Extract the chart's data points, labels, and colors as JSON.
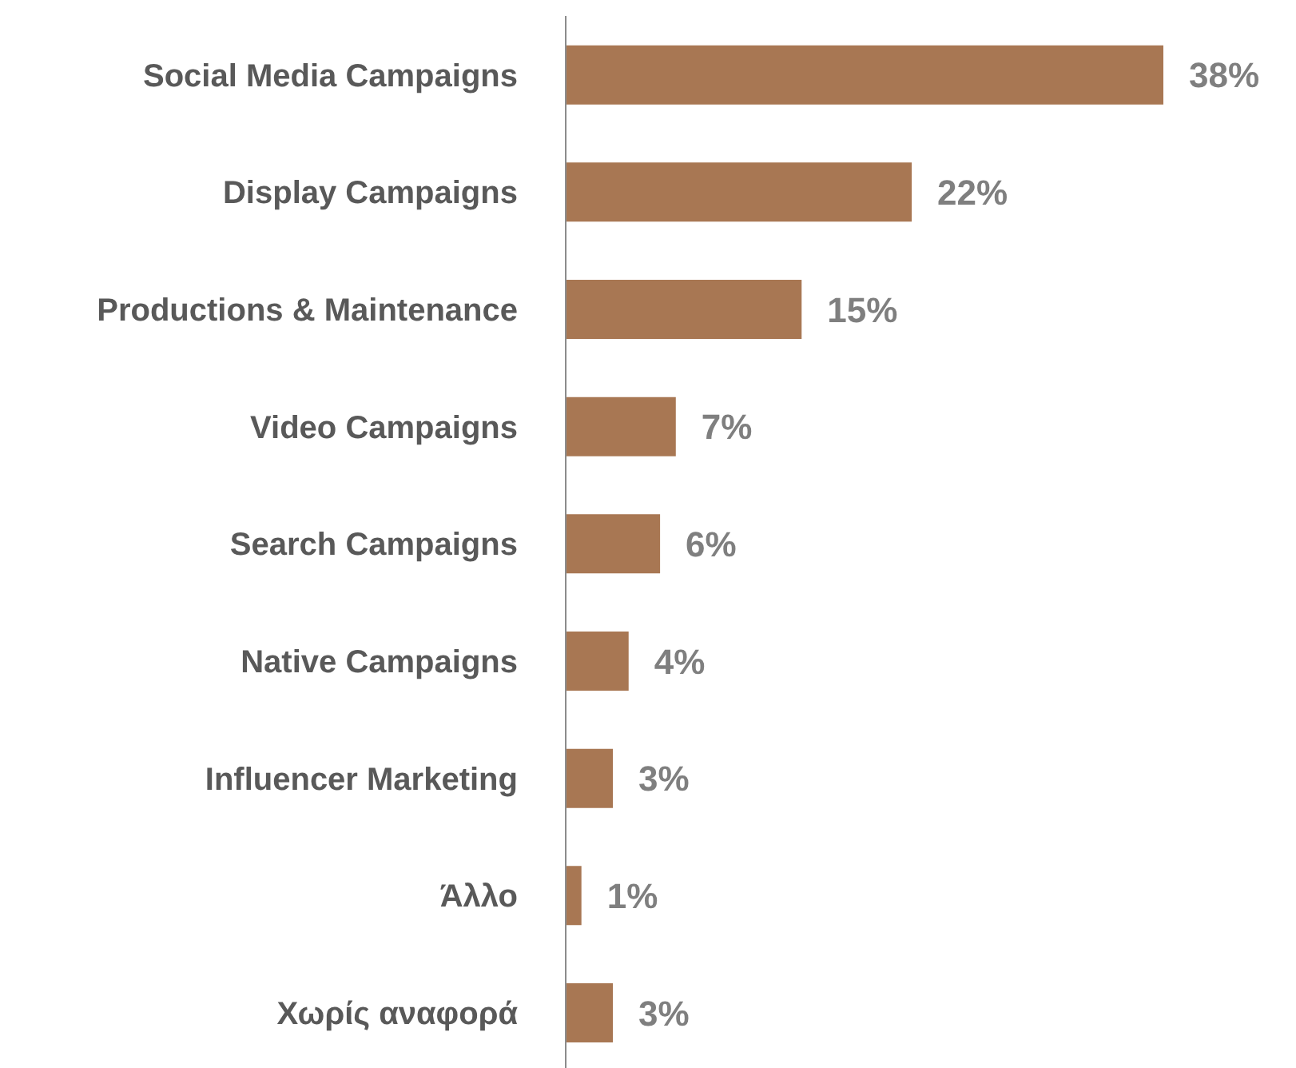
{
  "chart_data": {
    "type": "bar",
    "orientation": "horizontal",
    "categories": [
      "Social Media Campaigns",
      "Display Campaigns",
      "Productions & Maintenance",
      "Video Campaigns",
      "Search Campaigns",
      "Native Campaigns",
      "Influencer Marketing",
      "Άλλο",
      "Χωρίς αναφορά"
    ],
    "values": [
      38,
      22,
      15,
      7,
      6,
      4,
      3,
      1,
      3
    ],
    "value_labels": [
      "38%",
      "22%",
      "15%",
      "7%",
      "6%",
      "4%",
      "3%",
      "1%",
      "3%"
    ],
    "color": "#a87753"
  }
}
